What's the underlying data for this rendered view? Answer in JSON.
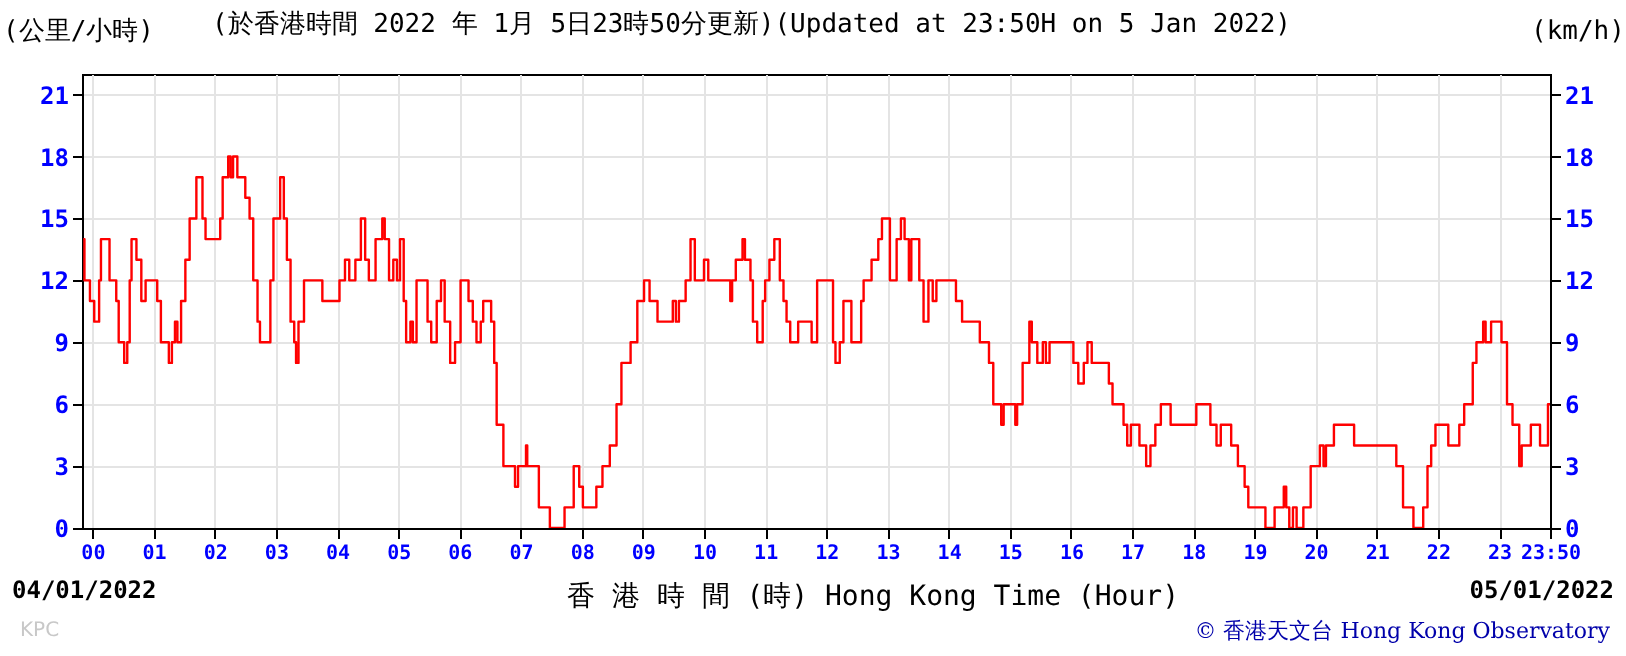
{
  "chart_data": {
    "type": "step",
    "title": "(於香港時間 2022 年 1月 5日23時50分更新)(Updated at 23:50H on 5 Jan 2022)",
    "xlabel": "香 港 時 間 (時) Hong Kong Time (Hour)",
    "ylabel": "(公里/小時)",
    "y2label": "(km/h)",
    "annotations": [
      "04/01/2022",
      "05/01/2022",
      "© 香港天文台 Hong Kong Observatory",
      "KPC"
    ],
    "x": [
      -0.15,
      -0.13,
      -0.04,
      0.03,
      0.11,
      0.14,
      0.28,
      0.39,
      0.43,
      0.52,
      0.57,
      0.61,
      0.64,
      0.72,
      0.8,
      0.87,
      1.06,
      1.12,
      1.25,
      1.3,
      1.35,
      1.39,
      1.45,
      1.52,
      1.59,
      1.7,
      1.8,
      1.85,
      2.09,
      2.13,
      2.22,
      2.26,
      2.3,
      2.37,
      2.5,
      2.57,
      2.63,
      2.7,
      2.74,
      2.91,
      2.96,
      3.07,
      3.13,
      3.18,
      3.24,
      3.3,
      3.33,
      3.37,
      3.46,
      3.76,
      4.04,
      4.13,
      4.2,
      4.3,
      4.39,
      4.46,
      4.52,
      4.63,
      4.74,
      4.78,
      4.85,
      4.92,
      4.98,
      5.03,
      5.09,
      5.13,
      5.2,
      5.24,
      5.3,
      5.48,
      5.54,
      5.63,
      5.7,
      5.76,
      5.85,
      5.93,
      6.02,
      6.15,
      6.22,
      6.28,
      6.35,
      6.39,
      6.52,
      6.57,
      6.61,
      6.72,
      6.91,
      6.96,
      7.09,
      7.11,
      7.3,
      7.48,
      7.72,
      7.87,
      7.96,
      8.02,
      8.24,
      8.34,
      8.46,
      8.57,
      8.65,
      8.8,
      8.91,
      9.02,
      9.11,
      9.24,
      9.49,
      9.54,
      9.59,
      9.7,
      9.78,
      9.85,
      10.0,
      10.07,
      10.43,
      10.46,
      10.52,
      10.63,
      10.67,
      10.76,
      10.8,
      10.87,
      10.96,
      11.0,
      11.07,
      11.15,
      11.24,
      11.3,
      11.35,
      11.41,
      11.54,
      11.76,
      11.85,
      12.11,
      12.15,
      12.22,
      12.28,
      12.41,
      12.57,
      12.61,
      12.74,
      12.85,
      12.91,
      13.04,
      13.15,
      13.22,
      13.28,
      13.35,
      13.39,
      13.52,
      13.59,
      13.67,
      13.74,
      13.8,
      13.91,
      14.12,
      14.22,
      14.51,
      14.66,
      14.73,
      14.86,
      14.9,
      15.09,
      15.12,
      15.21,
      15.32,
      15.36,
      15.45,
      15.54,
      15.59,
      15.65,
      16.04,
      16.12,
      16.21,
      16.27,
      16.34,
      16.62,
      16.68,
      16.86,
      16.92,
      16.98,
      17.12,
      17.23,
      17.3,
      17.38,
      17.47,
      17.63,
      18.05,
      18.28,
      18.38,
      18.45,
      18.62,
      18.73,
      18.84,
      18.9,
      19.18,
      19.33,
      19.48,
      19.52,
      19.57,
      19.63,
      19.69,
      19.8,
      19.92,
      20.07,
      20.13,
      20.17,
      20.3,
      20.63,
      21.32,
      21.43,
      21.6,
      21.76,
      21.83,
      21.89,
      21.96,
      22.17,
      22.35,
      22.43,
      22.57,
      22.63,
      22.74,
      22.78,
      22.87,
      23.04,
      23.13,
      23.22,
      23.33,
      23.37,
      23.52,
      23.67,
      23.8,
      23.833
    ],
    "series": [
      {
        "color": "#ff0000",
        "values": [
          14,
          12,
          11,
          10,
          12,
          14,
          12,
          11,
          9,
          8,
          9,
          12,
          14,
          13,
          11,
          12,
          11,
          9,
          8,
          9,
          10,
          9,
          11,
          13,
          15,
          17,
          15,
          14,
          15,
          17,
          18,
          17,
          18,
          17,
          16,
          15,
          12,
          10,
          9,
          12,
          15,
          17,
          15,
          13,
          10,
          9,
          8,
          10,
          12,
          11,
          12,
          13,
          12,
          13,
          15,
          13,
          12,
          14,
          15,
          14,
          12,
          13,
          12,
          14,
          11,
          9,
          10,
          9,
          12,
          10,
          9,
          11,
          12,
          10,
          8,
          9,
          12,
          11,
          10,
          9,
          10,
          11,
          10,
          8,
          5,
          3,
          2,
          3,
          4,
          3,
          1,
          0,
          1,
          3,
          2,
          1,
          2,
          3,
          4,
          6,
          8,
          9,
          11,
          12,
          11,
          10,
          11,
          10,
          11,
          12,
          14,
          12,
          13,
          12,
          11,
          12,
          13,
          14,
          13,
          12,
          10,
          9,
          11,
          12,
          13,
          14,
          12,
          11,
          10,
          9,
          10,
          9,
          12,
          9,
          8,
          9,
          11,
          9,
          11,
          12,
          13,
          14,
          15,
          12,
          14,
          15,
          14,
          12,
          14,
          12,
          10,
          12,
          11,
          12,
          12,
          11,
          10,
          9,
          8,
          6,
          5,
          6,
          5,
          6,
          8,
          10,
          9,
          8,
          9,
          8,
          9,
          8,
          7,
          8,
          9,
          8,
          7,
          6,
          5,
          4,
          5,
          4,
          3,
          4,
          5,
          6,
          5,
          6,
          5,
          4,
          5,
          4,
          3,
          2,
          1,
          0,
          1,
          2,
          1,
          0,
          1,
          0,
          1,
          3,
          4,
          3,
          4,
          5,
          4,
          3,
          1,
          0,
          1,
          3,
          4,
          5,
          4,
          5,
          6,
          8,
          9,
          10,
          9,
          10,
          9,
          6,
          5,
          3,
          4,
          5,
          4,
          6,
          6
        ]
      }
    ],
    "xlim": [
      -0.17,
      23.833
    ],
    "xticks": [
      {
        "value": 0,
        "label": "00"
      },
      {
        "value": 1,
        "label": "01"
      },
      {
        "value": 2,
        "label": "02"
      },
      {
        "value": 3,
        "label": "03"
      },
      {
        "value": 4,
        "label": "04"
      },
      {
        "value": 5,
        "label": "05"
      },
      {
        "value": 6,
        "label": "06"
      },
      {
        "value": 7,
        "label": "07"
      },
      {
        "value": 8,
        "label": "08"
      },
      {
        "value": 9,
        "label": "09"
      },
      10,
      11,
      12,
      13,
      14,
      15,
      16,
      17,
      18,
      19,
      20,
      21,
      22,
      23,
      {
        "value": 23.833,
        "label": "23:50"
      }
    ],
    "ylim": [
      0,
      22
    ],
    "yticks": [
      0,
      3,
      6,
      9,
      12,
      15,
      18,
      21
    ],
    "y2lim": [
      0,
      22
    ],
    "y2ticks": [
      0,
      3,
      6,
      9,
      12,
      15,
      18,
      21
    ],
    "grid": true
  }
}
